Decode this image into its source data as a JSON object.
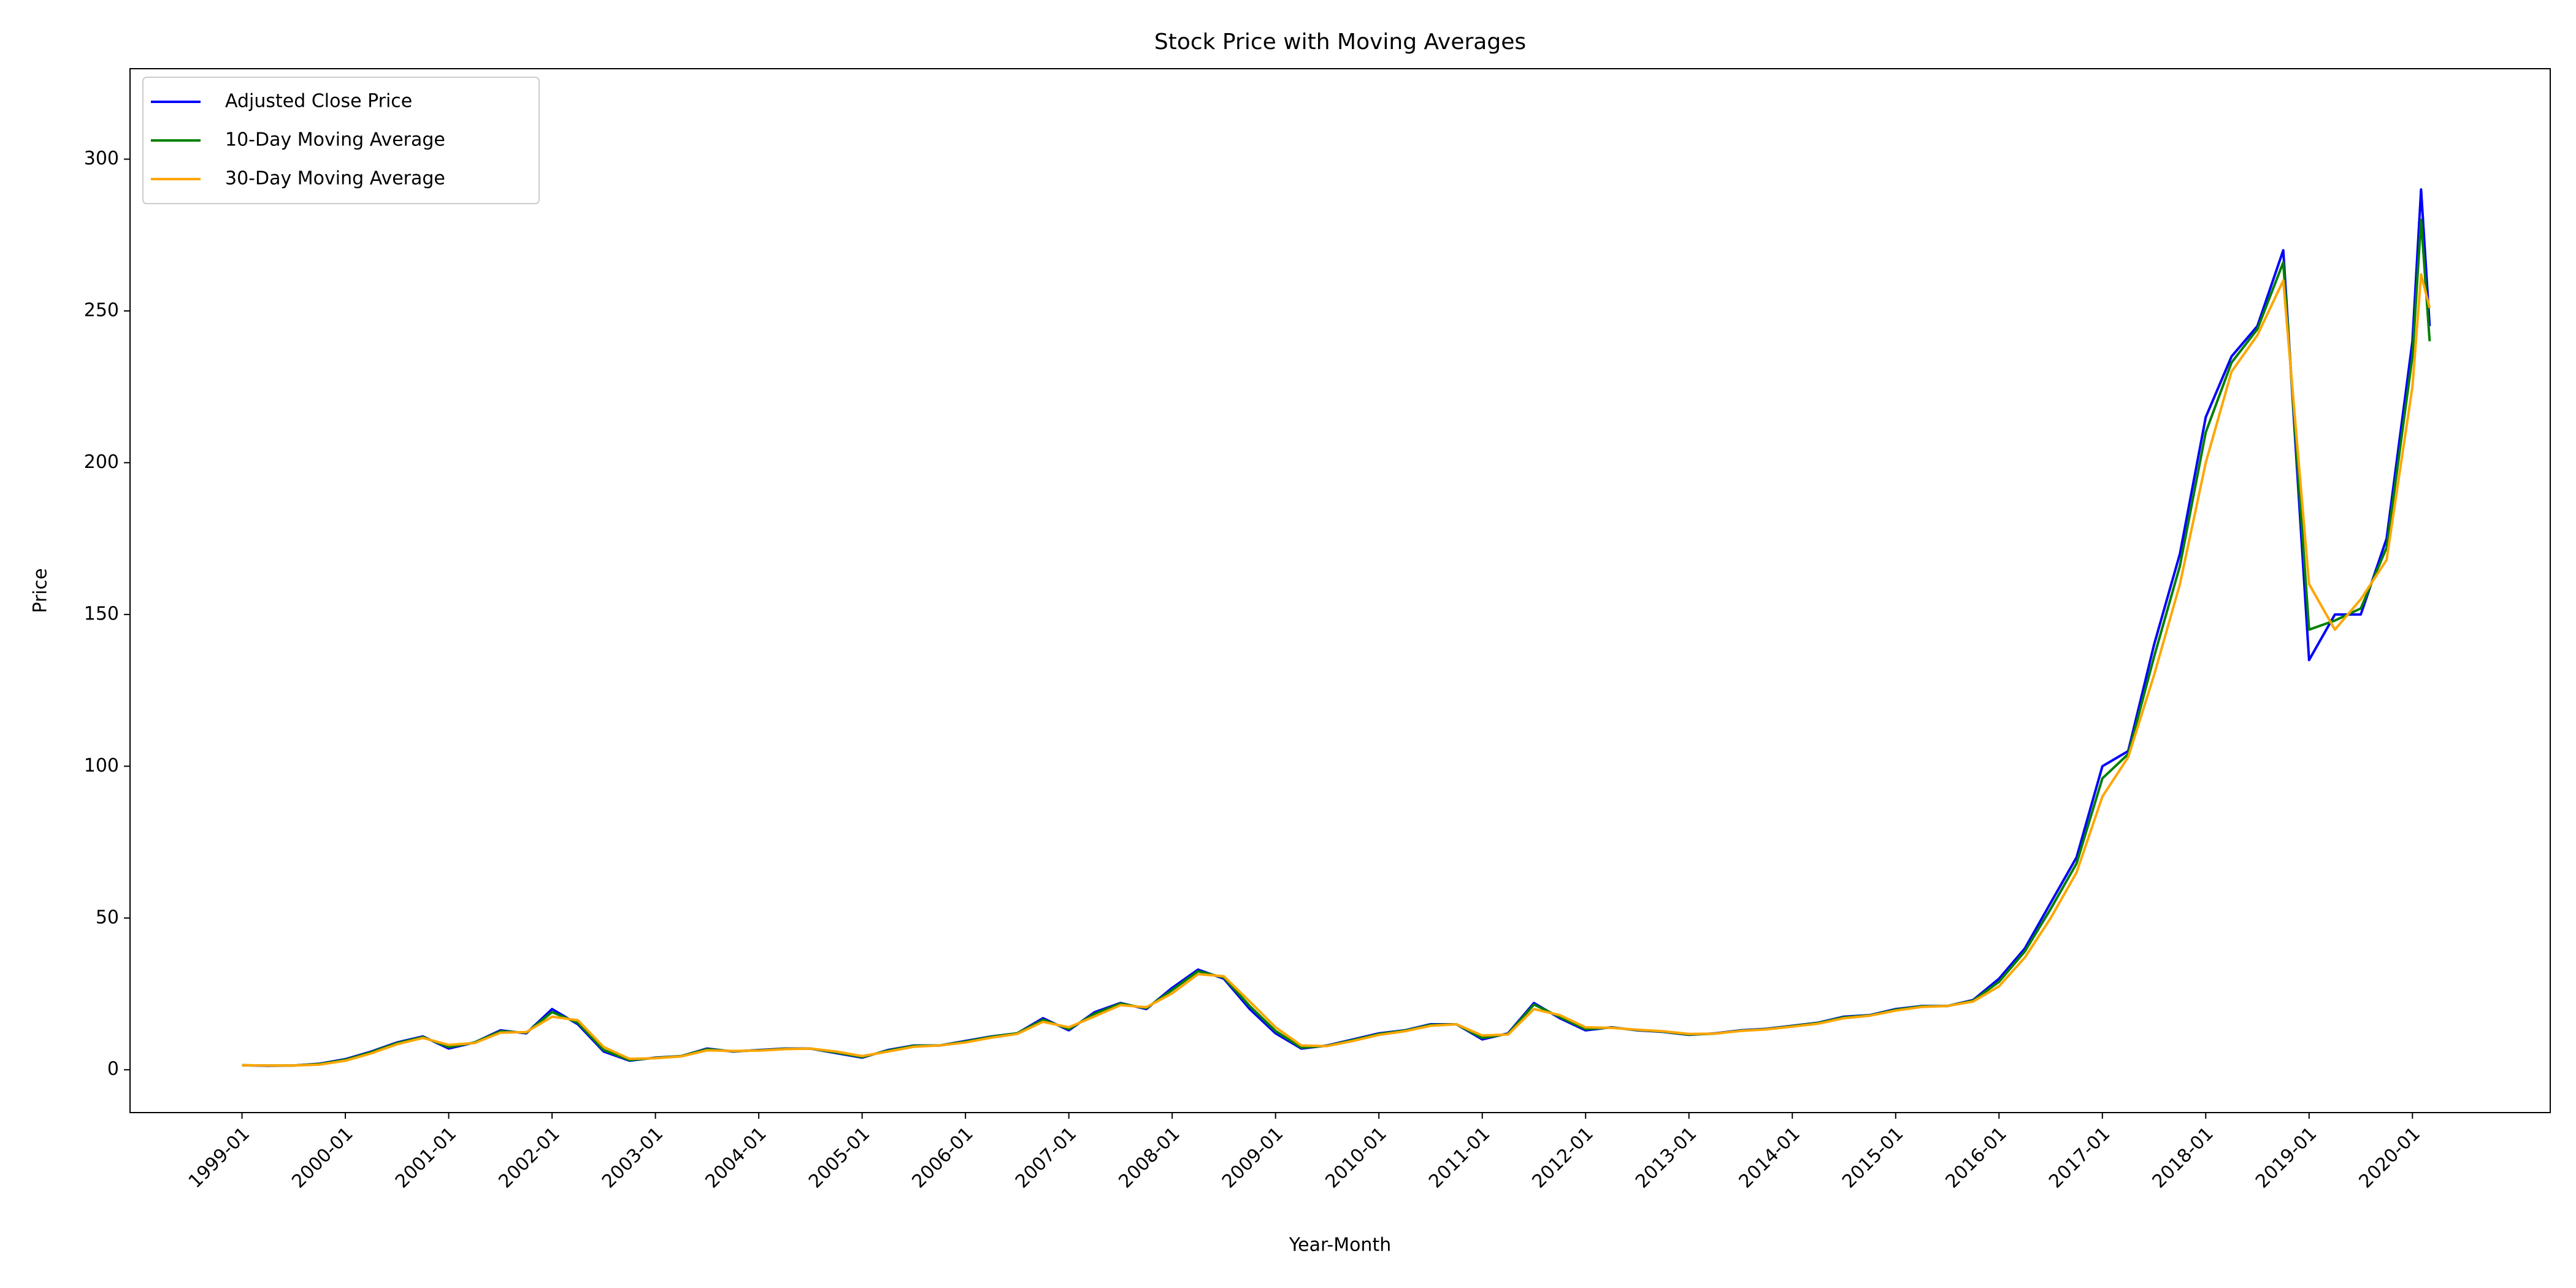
{
  "chart_data": {
    "type": "line",
    "title": "Stock Price with Moving Averages",
    "x_label": "Year-Month",
    "y_label": "Price",
    "x": [
      "1999-01",
      "1999-04",
      "1999-07",
      "1999-10",
      "2000-01",
      "2000-04",
      "2000-07",
      "2000-10",
      "2001-01",
      "2001-04",
      "2001-07",
      "2001-10",
      "2002-01",
      "2002-04",
      "2002-07",
      "2002-10",
      "2003-01",
      "2003-04",
      "2003-07",
      "2003-10",
      "2004-01",
      "2004-04",
      "2004-07",
      "2004-10",
      "2005-01",
      "2005-04",
      "2005-07",
      "2005-10",
      "2006-01",
      "2006-04",
      "2006-07",
      "2006-10",
      "2007-01",
      "2007-04",
      "2007-07",
      "2007-10",
      "2008-01",
      "2008-04",
      "2008-07",
      "2008-10",
      "2009-01",
      "2009-04",
      "2009-07",
      "2009-10",
      "2010-01",
      "2010-04",
      "2010-07",
      "2010-10",
      "2011-01",
      "2011-04",
      "2011-07",
      "2011-10",
      "2012-01",
      "2012-04",
      "2012-07",
      "2012-10",
      "2013-01",
      "2013-04",
      "2013-07",
      "2013-10",
      "2014-01",
      "2014-04",
      "2014-07",
      "2014-10",
      "2015-01",
      "2015-04",
      "2015-07",
      "2015-10",
      "2016-01",
      "2016-04",
      "2016-07",
      "2016-10",
      "2017-01",
      "2017-04",
      "2017-07",
      "2017-10",
      "2018-01",
      "2018-04",
      "2018-07",
      "2018-10",
      "2019-01",
      "2019-04",
      "2019-07",
      "2019-10",
      "2020-01",
      "2020-02",
      "2020-03"
    ],
    "series": [
      {
        "name": "Adjusted Close Price",
        "color": "#0000ff",
        "values": [
          1.5,
          1.3,
          1.4,
          2.0,
          3.5,
          6,
          9,
          11,
          7,
          9,
          13,
          12,
          20,
          15,
          6,
          3,
          4,
          4.5,
          7,
          6,
          6.5,
          7,
          7,
          5.5,
          4,
          6.5,
          8,
          8,
          9.5,
          11,
          12,
          17,
          13,
          19,
          22,
          20,
          27,
          33,
          30,
          20,
          12,
          7,
          8,
          10,
          12,
          13,
          15,
          15,
          10,
          12,
          22,
          17,
          13,
          14,
          13,
          12.5,
          11.5,
          12,
          13,
          13.5,
          14.5,
          15.5,
          17.5,
          18,
          20,
          21,
          21,
          23,
          30,
          40,
          55,
          70,
          100,
          105,
          140,
          170,
          215,
          235,
          245,
          270,
          135,
          150,
          150,
          175,
          240,
          290,
          245
        ]
      },
      {
        "name": "10-Day Moving Average",
        "color": "#008000",
        "values": [
          1.5,
          1.4,
          1.4,
          1.9,
          3.3,
          5.8,
          8.8,
          10.8,
          7.5,
          9,
          12.7,
          12.2,
          19,
          15.5,
          6.5,
          3.2,
          3.9,
          4.5,
          6.8,
          6.1,
          6.4,
          6.9,
          7,
          5.7,
          4.2,
          6.3,
          7.9,
          8,
          9.3,
          10.9,
          12,
          16.5,
          13.4,
          18.5,
          21.8,
          20.3,
          26.3,
          32.5,
          30.4,
          21,
          12.8,
          7.3,
          7.9,
          9.8,
          11.8,
          12.9,
          14.8,
          15,
          10.5,
          11.8,
          21.5,
          17.4,
          13.4,
          13.9,
          13.1,
          12.6,
          11.6,
          11.9,
          12.9,
          13.4,
          14.4,
          15.4,
          17.3,
          17.9,
          19.8,
          20.9,
          21,
          22.8,
          29,
          39,
          53,
          68,
          96,
          104,
          136,
          166,
          210,
          233,
          244,
          266,
          145,
          148,
          152,
          172,
          235,
          280,
          240
        ]
      },
      {
        "name": "30-Day Moving Average",
        "color": "#ffa500",
        "values": [
          1.5,
          1.4,
          1.4,
          1.7,
          3,
          5.4,
          8.4,
          10.5,
          8.2,
          8.8,
          12.2,
          12.4,
          17.5,
          16.3,
          7.5,
          3.6,
          3.8,
          4.4,
          6.4,
          6.2,
          6.3,
          6.8,
          7,
          6,
          4.5,
          6,
          7.6,
          8,
          9,
          10.6,
          11.8,
          15.8,
          14,
          17.6,
          21.3,
          20.6,
          25.2,
          31.5,
          30.8,
          22.5,
          14,
          8,
          7.8,
          9.5,
          11.5,
          12.7,
          14.5,
          15,
          11.3,
          11.6,
          20,
          18,
          14,
          13.8,
          13.2,
          12.7,
          11.8,
          11.9,
          12.8,
          13.3,
          14.2,
          15.2,
          17,
          17.8,
          19.5,
          20.7,
          21,
          22.5,
          27.5,
          37,
          50,
          65,
          90,
          103,
          130,
          160,
          200,
          230,
          242,
          260,
          160,
          145,
          155,
          168,
          225,
          262,
          251
        ]
      }
    ],
    "xlim": [
      "1997-12",
      "2021-05"
    ],
    "xticks": [
      "1999-01",
      "2000-01",
      "2001-01",
      "2002-01",
      "2003-01",
      "2004-01",
      "2005-01",
      "2006-01",
      "2007-01",
      "2008-01",
      "2009-01",
      "2010-01",
      "2011-01",
      "2012-01",
      "2013-01",
      "2014-01",
      "2015-01",
      "2016-01",
      "2017-01",
      "2018-01",
      "2019-01",
      "2020-01"
    ],
    "ylim": [
      -14.1,
      329.8
    ],
    "yticks": [
      0,
      50,
      100,
      150,
      200,
      250,
      300
    ],
    "legend": "upper left",
    "grid": false
  }
}
